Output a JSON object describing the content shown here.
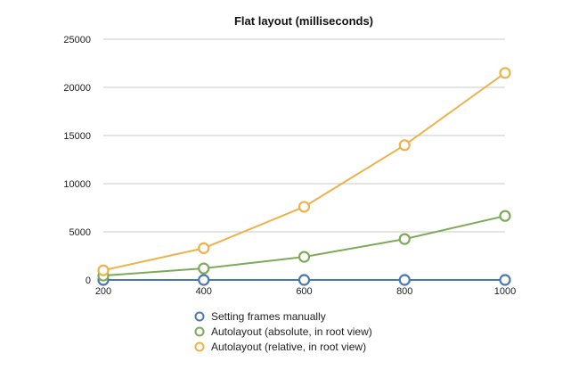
{
  "chart_data": {
    "type": "line",
    "title": "Flat layout (milliseconds)",
    "xlabel": "",
    "ylabel": "",
    "x": [
      200,
      400,
      600,
      800,
      1000
    ],
    "xlim": [
      200,
      1000
    ],
    "ylim": [
      0,
      25000
    ],
    "xticks": [
      200,
      400,
      600,
      800,
      1000
    ],
    "yticks": [
      0,
      5000,
      10000,
      15000,
      20000,
      25000
    ],
    "grid": "horizontal",
    "legend_position": "bottom",
    "series": [
      {
        "name": "Setting frames manually",
        "color": "#4a78b5",
        "values": [
          0,
          0,
          0,
          0,
          0
        ]
      },
      {
        "name": "Autolayout (absolute, in root view)",
        "color": "#7daa57",
        "values": [
          450,
          1200,
          2400,
          4250,
          6650
        ]
      },
      {
        "name": "Autolayout (relative, in root view)",
        "color": "#edb24a",
        "values": [
          1000,
          3300,
          7600,
          14000,
          21500
        ]
      }
    ]
  }
}
